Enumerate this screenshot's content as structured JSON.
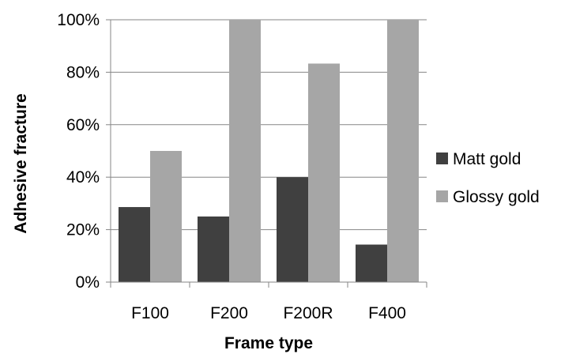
{
  "chart_data": {
    "type": "bar",
    "title": "",
    "xlabel": "Frame type",
    "ylabel": "Adhesive fracture",
    "categories": [
      "F100",
      "F200",
      "F200R",
      "F400"
    ],
    "series": [
      {
        "name": "Matt gold",
        "color": "#404040",
        "values": [
          28.6,
          25.0,
          40.0,
          14.3
        ]
      },
      {
        "name": "Glossy gold",
        "color": "#a6a6a6",
        "values": [
          50.0,
          100.0,
          83.3,
          100.0
        ]
      }
    ],
    "ylim": [
      0,
      100
    ],
    "yticks": [
      "0%",
      "20%",
      "40%",
      "60%",
      "80%",
      "100%"
    ],
    "grid": true,
    "legend_position": "right"
  }
}
